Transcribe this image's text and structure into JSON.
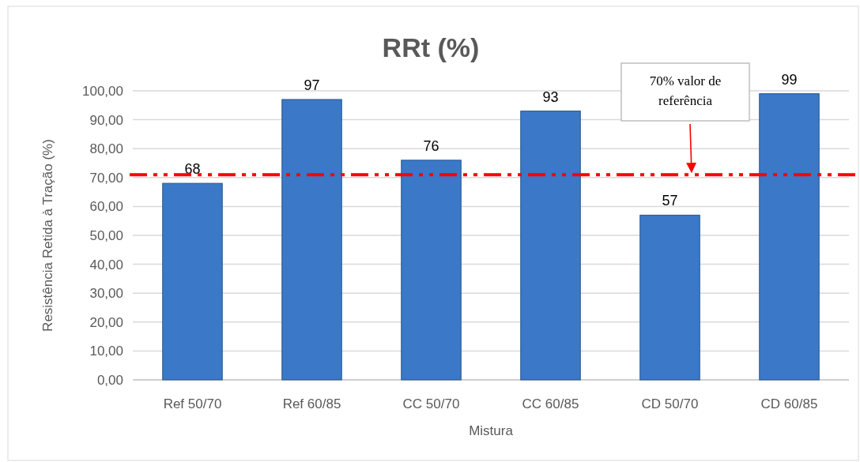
{
  "chart_data": {
    "type": "bar",
    "title": "RRt (%)",
    "xlabel": "Mistura",
    "ylabel": "Resistência Retida à Tração (%)",
    "categories": [
      "Ref 50/70",
      "Ref 60/85",
      "CC 50/70",
      "CC 60/85",
      "CD 50/70",
      "CD 60/85"
    ],
    "values": [
      68,
      97,
      76,
      93,
      57,
      99
    ],
    "color": "#3b78c8",
    "data_labels": true,
    "ylim": [
      0,
      100
    ],
    "yticks": [
      {
        "value": 0,
        "label": "0,00"
      },
      {
        "value": 10,
        "label": "10,00"
      },
      {
        "value": 20,
        "label": "20,00"
      },
      {
        "value": 30,
        "label": "30,00"
      },
      {
        "value": 40,
        "label": "40,00"
      },
      {
        "value": 50,
        "label": "50,00"
      },
      {
        "value": 60,
        "label": "60,00"
      },
      {
        "value": 70,
        "label": "70,00"
      },
      {
        "value": 80,
        "label": "80,00"
      },
      {
        "value": 90,
        "label": "90,00"
      },
      {
        "value": 100,
        "label": "100,00"
      }
    ],
    "grid": "y",
    "ref_lines": [
      {
        "axis": "y",
        "value": 71,
        "color": "#ff0000",
        "line_style": "dashdot"
      }
    ],
    "annotations": [
      "70% valor de referência"
    ]
  }
}
